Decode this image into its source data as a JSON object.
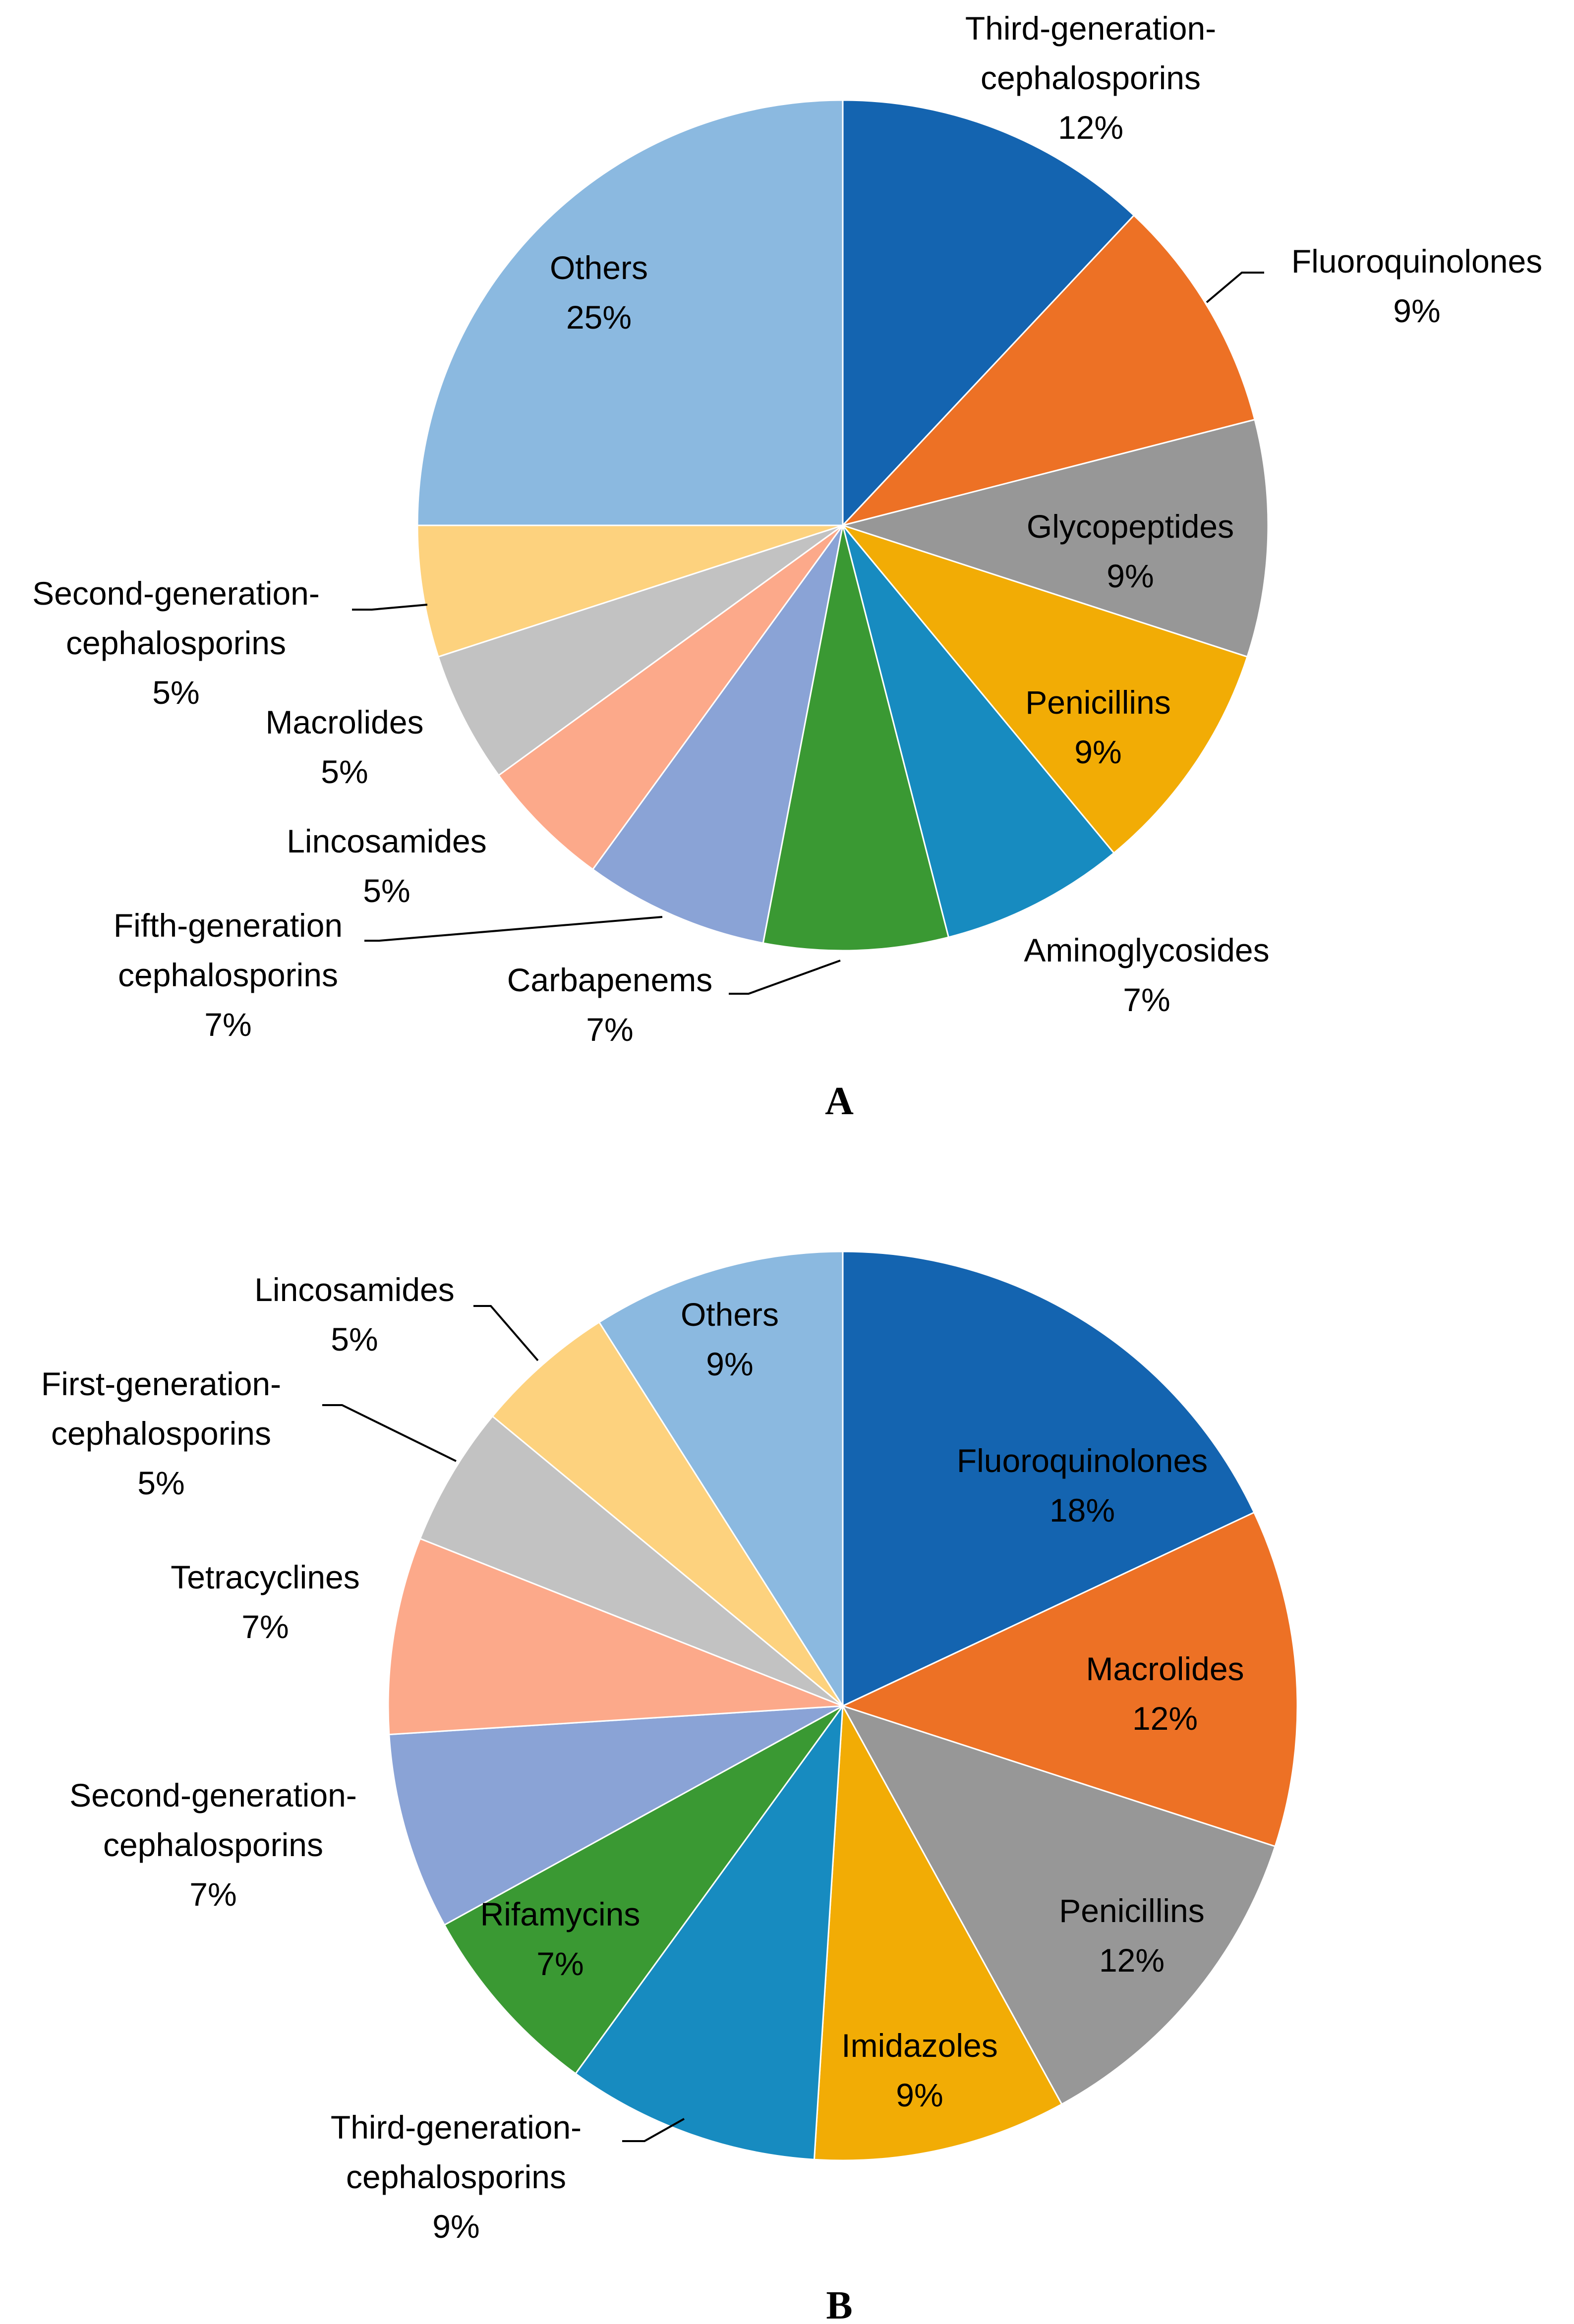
{
  "chart_data": [
    {
      "type": "pie",
      "panel": "A",
      "title": "",
      "slices": [
        {
          "name": "Third-generation-cephalosporins",
          "lines": [
            "Third-generation-",
            "cephalosporins"
          ],
          "percent_label": "12%",
          "value": 12,
          "color": "#1464b0"
        },
        {
          "name": "Fluoroquinolones",
          "lines": [
            "Fluoroquinolones"
          ],
          "percent_label": "9%",
          "value": 9,
          "color": "#ed7125"
        },
        {
          "name": "Glycopeptides",
          "lines": [
            "Glycopeptides"
          ],
          "percent_label": "9%",
          "value": 9,
          "color": "#979797"
        },
        {
          "name": "Penicillins",
          "lines": [
            "Penicillins"
          ],
          "percent_label": "9%",
          "value": 9,
          "color": "#f2ac05"
        },
        {
          "name": "Aminoglycosides",
          "lines": [
            "Aminoglycosides"
          ],
          "percent_label": "7%",
          "value": 7,
          "color": "#178bc0"
        },
        {
          "name": "Carbapenems",
          "lines": [
            "Carbapenems"
          ],
          "percent_label": "7%",
          "value": 7,
          "color": "#3a9933"
        },
        {
          "name": "Fifth-generation cephalosporins",
          "lines": [
            "Fifth-generation",
            "cephalosporins"
          ],
          "percent_label": "7%",
          "value": 7,
          "color": "#8aa3d6"
        },
        {
          "name": "Lincosamides",
          "lines": [
            "Lincosamides"
          ],
          "percent_label": "5%",
          "value": 5,
          "color": "#fca98a"
        },
        {
          "name": "Macrolides",
          "lines": [
            "Macrolides"
          ],
          "percent_label": "5%",
          "value": 5,
          "color": "#c2c2c2"
        },
        {
          "name": "Second-generation-cephalosporins",
          "lines": [
            "Second-generation-",
            "cephalosporins"
          ],
          "percent_label": "5%",
          "value": 5,
          "color": "#fdd27e"
        },
        {
          "name": "Others",
          "lines": [
            "Others"
          ],
          "percent_label": "25%",
          "value": 25,
          "color": "#8bb9e0"
        }
      ]
    },
    {
      "type": "pie",
      "panel": "B",
      "title": "",
      "slices": [
        {
          "name": "Fluoroquinolones",
          "lines": [
            "Fluoroquinolones"
          ],
          "percent_label": "18%",
          "value": 18,
          "color": "#1464b0"
        },
        {
          "name": "Macrolides",
          "lines": [
            "Macrolides"
          ],
          "percent_label": "12%",
          "value": 12,
          "color": "#ed7125"
        },
        {
          "name": "Penicillins",
          "lines": [
            "Penicillins"
          ],
          "percent_label": "12%",
          "value": 12,
          "color": "#979797"
        },
        {
          "name": "Imidazoles",
          "lines": [
            "Imidazoles"
          ],
          "percent_label": "9%",
          "value": 9,
          "color": "#f2ac05"
        },
        {
          "name": "Third-generation-cephalosporins",
          "lines": [
            "Third-generation-",
            "cephalosporins"
          ],
          "percent_label": "9%",
          "value": 9,
          "color": "#178bc0"
        },
        {
          "name": "Rifamycins",
          "lines": [
            "Rifamycins"
          ],
          "percent_label": "7%",
          "value": 7,
          "color": "#3a9933"
        },
        {
          "name": "Second-generation-cephalosporins",
          "lines": [
            "Second-generation-",
            "cephalosporins"
          ],
          "percent_label": "7%",
          "value": 7,
          "color": "#8aa3d6"
        },
        {
          "name": "Tetracyclines",
          "lines": [
            "Tetracyclines"
          ],
          "percent_label": "7%",
          "value": 7,
          "color": "#fca98a"
        },
        {
          "name": "First-generation-cephalosporins",
          "lines": [
            "First-generation-",
            "cephalosporins"
          ],
          "percent_label": "5%",
          "value": 5,
          "color": "#c2c2c2"
        },
        {
          "name": "Lincosamides",
          "lines": [
            "Lincosamides"
          ],
          "percent_label": "5%",
          "value": 5,
          "color": "#fdd27e"
        },
        {
          "name": "Others",
          "lines": [
            "Others"
          ],
          "percent_label": "9%",
          "value": 9,
          "color": "#8bb9e0"
        }
      ]
    }
  ]
}
